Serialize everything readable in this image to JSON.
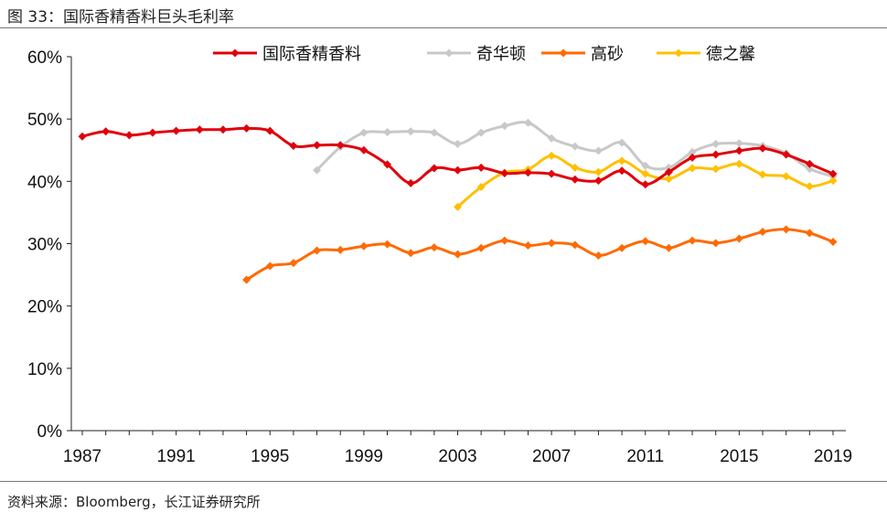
{
  "figure_title": "图 33：国际香精香料巨头毛利率",
  "source": "资料来源：Bloomberg，长江证券研究所",
  "chart_data": {
    "type": "line",
    "title": "",
    "xlabel": "",
    "ylabel": "",
    "ylim": [
      0,
      60
    ],
    "xlim": [
      1987,
      2019
    ],
    "y_ticks": [
      "0%",
      "10%",
      "20%",
      "30%",
      "40%",
      "50%",
      "60%"
    ],
    "x_ticks": [
      "1987",
      "1991",
      "1995",
      "1999",
      "2003",
      "2007",
      "2011",
      "2015",
      "2019"
    ],
    "grid": false,
    "legend_position": "top",
    "series": [
      {
        "name": "国际香精香料",
        "color": "#E0000B",
        "start": 1987,
        "values": [
          47.2,
          48.0,
          47.4,
          47.8,
          48.1,
          48.3,
          48.3,
          48.5,
          48.1,
          45.7,
          45.8,
          45.8,
          45.0,
          42.7,
          39.7,
          42.1,
          41.8,
          42.2,
          41.3,
          41.4,
          41.2,
          40.3,
          40.1,
          41.7,
          39.5,
          41.5,
          43.8,
          44.3,
          44.9,
          45.3,
          44.3,
          42.8,
          41.2
        ]
      },
      {
        "name": "奇华顿",
        "color": "#C8C8C8",
        "start": 1997,
        "values": [
          41.8,
          45.5,
          47.8,
          47.9,
          48.0,
          47.8,
          46.0,
          47.8,
          48.9,
          49.4,
          46.9,
          45.6,
          44.9,
          46.2,
          42.5,
          42.2,
          44.7,
          46.0,
          46.1,
          45.7,
          44.5,
          42.0,
          40.8
        ]
      },
      {
        "name": "高砂",
        "color": "#FF6A00",
        "start": 1994,
        "values": [
          24.2,
          26.4,
          26.9,
          28.9,
          29.0,
          29.6,
          29.9,
          28.5,
          29.4,
          28.3,
          29.3,
          30.5,
          29.7,
          30.1,
          29.8,
          28.1,
          29.3,
          30.4,
          29.3,
          30.5,
          30.1,
          30.8,
          31.9,
          32.3,
          31.7,
          30.3
        ]
      },
      {
        "name": "德之馨",
        "color": "#FFC000",
        "start": 2003,
        "values": [
          35.9,
          39.1,
          41.4,
          41.9,
          44.1,
          42.2,
          41.5,
          43.3,
          41.2,
          40.4,
          42.1,
          42.0,
          42.8,
          41.1,
          40.8,
          39.2,
          40.1
        ]
      }
    ]
  }
}
